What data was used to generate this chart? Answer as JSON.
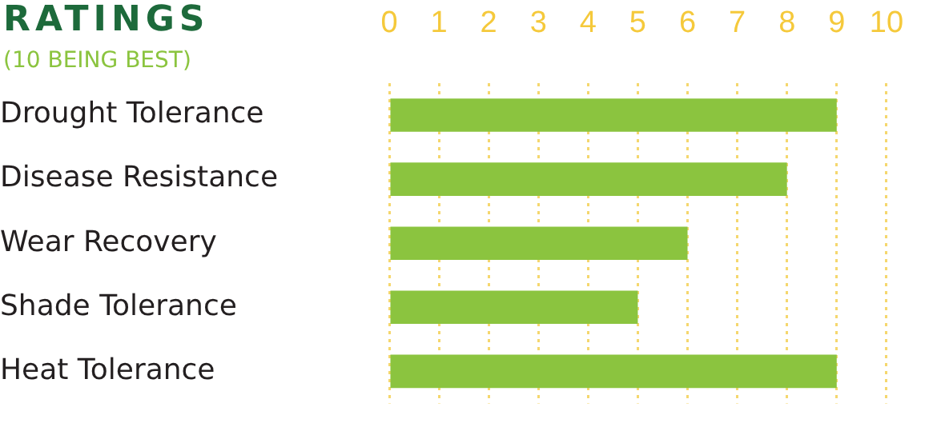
{
  "chart_data": {
    "type": "bar",
    "orientation": "horizontal",
    "title": "RATINGS",
    "subtitle": "(10 BEING BEST)",
    "categories": [
      "Drought Tolerance",
      "Disease Resistance",
      "Wear Recovery",
      "Shade Tolerance",
      "Heat Tolerance"
    ],
    "values": [
      9,
      8,
      6,
      5,
      9
    ],
    "color": "#8bc43f",
    "xlim": [
      0,
      10
    ],
    "xticks": [
      0,
      1,
      2,
      3,
      4,
      5,
      6,
      7,
      8,
      9,
      10
    ],
    "grid": "x",
    "legend": false
  }
}
